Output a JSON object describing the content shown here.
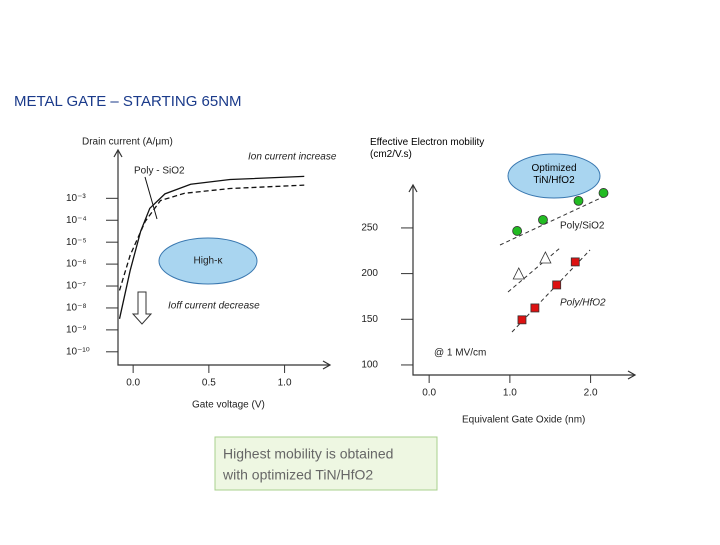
{
  "title": "METAL GATE – STARTING 65NM",
  "caption": [
    "Highest mobility is obtained",
    "with optimized TiN/HfO2"
  ],
  "chart_data": [
    {
      "type": "line",
      "title": "Drain current (A/μm)",
      "xlabel": "Gate voltage (V)",
      "log_y": true,
      "xlim": [
        -0.1,
        1.3
      ],
      "xticks": [
        {
          "value": 0,
          "label": "0.0"
        },
        {
          "value": 0.5,
          "label": "0.5"
        },
        {
          "value": 1,
          "label": "1.0"
        }
      ],
      "ylim": [
        2.5e-11,
        0.16
      ],
      "yticks": [
        {
          "value": 0.001,
          "label": "10⁻³"
        },
        {
          "value": 0.0001,
          "label": "10⁻⁴"
        },
        {
          "value": 1e-05,
          "label": "10⁻⁵"
        },
        {
          "value": 1e-06,
          "label": "10⁻⁶"
        },
        {
          "value": 1e-07,
          "label": "10⁻⁷"
        },
        {
          "value": 1e-08,
          "label": "10⁻⁸"
        },
        {
          "value": 1e-09,
          "label": "10⁻⁹"
        },
        {
          "value": 1e-10,
          "label": "10⁻¹⁰"
        }
      ],
      "annotations": [
        "Ion current increase",
        "Ioff current decrease"
      ],
      "series": [
        {
          "name": "Poly - SiO2",
          "color": "#111",
          "dashed": true,
          "x": [
            -0.09,
            -0.02,
            0.08,
            0.18,
            0.34,
            0.64,
            1.13
          ],
          "values": [
            6.3e-08,
            2.5e-06,
            8.9e-05,
            0.00079,
            0.0017,
            0.0028,
            0.004
          ]
        },
        {
          "name": "High-κ",
          "color": "#111",
          "dashed": false,
          "x": [
            -0.09,
            -0.02,
            0.05,
            0.11,
            0.21,
            0.38,
            0.64,
            1.13
          ],
          "values": [
            3.2e-09,
            5e-07,
            3.2e-05,
            0.00035,
            0.0016,
            0.0044,
            0.0072,
            0.01
          ]
        }
      ]
    },
    {
      "type": "scatter",
      "title": "Effective Electron mobility (cm2/V.s)",
      "xlabel": "Equivalent Gate Oxide (nm)",
      "xlim": [
        -0.2,
        2.55
      ],
      "xticks": [
        {
          "value": 0,
          "label": "0.0"
        },
        {
          "value": 1,
          "label": "1.0"
        },
        {
          "value": 2,
          "label": "2.0"
        }
      ],
      "ylim": [
        89,
        297
      ],
      "yticks": [
        100,
        150,
        200,
        250
      ],
      "annotations": [
        "@ 1 MV/cm"
      ],
      "series": [
        {
          "name": "Optimized TiN/HfO2",
          "color": "#22bb22",
          "marker": "circle",
          "x": [
            1.09,
            1.41,
            1.85,
            2.16
          ],
          "values": [
            246.7,
            258.8,
            279.6,
            288.3
          ]
        },
        {
          "name": "Poly/SiO2",
          "color": "#ffffff",
          "marker": "triangle",
          "x": [
            1.11,
            1.44
          ],
          "values": [
            199.6,
            217.1
          ]
        },
        {
          "name": "Poly/HfO2",
          "color": "#dd1111",
          "marker": "square",
          "x": [
            1.15,
            1.31,
            1.58,
            1.81
          ],
          "values": [
            149.4,
            162.4,
            187.6,
            212.8
          ]
        }
      ]
    }
  ]
}
